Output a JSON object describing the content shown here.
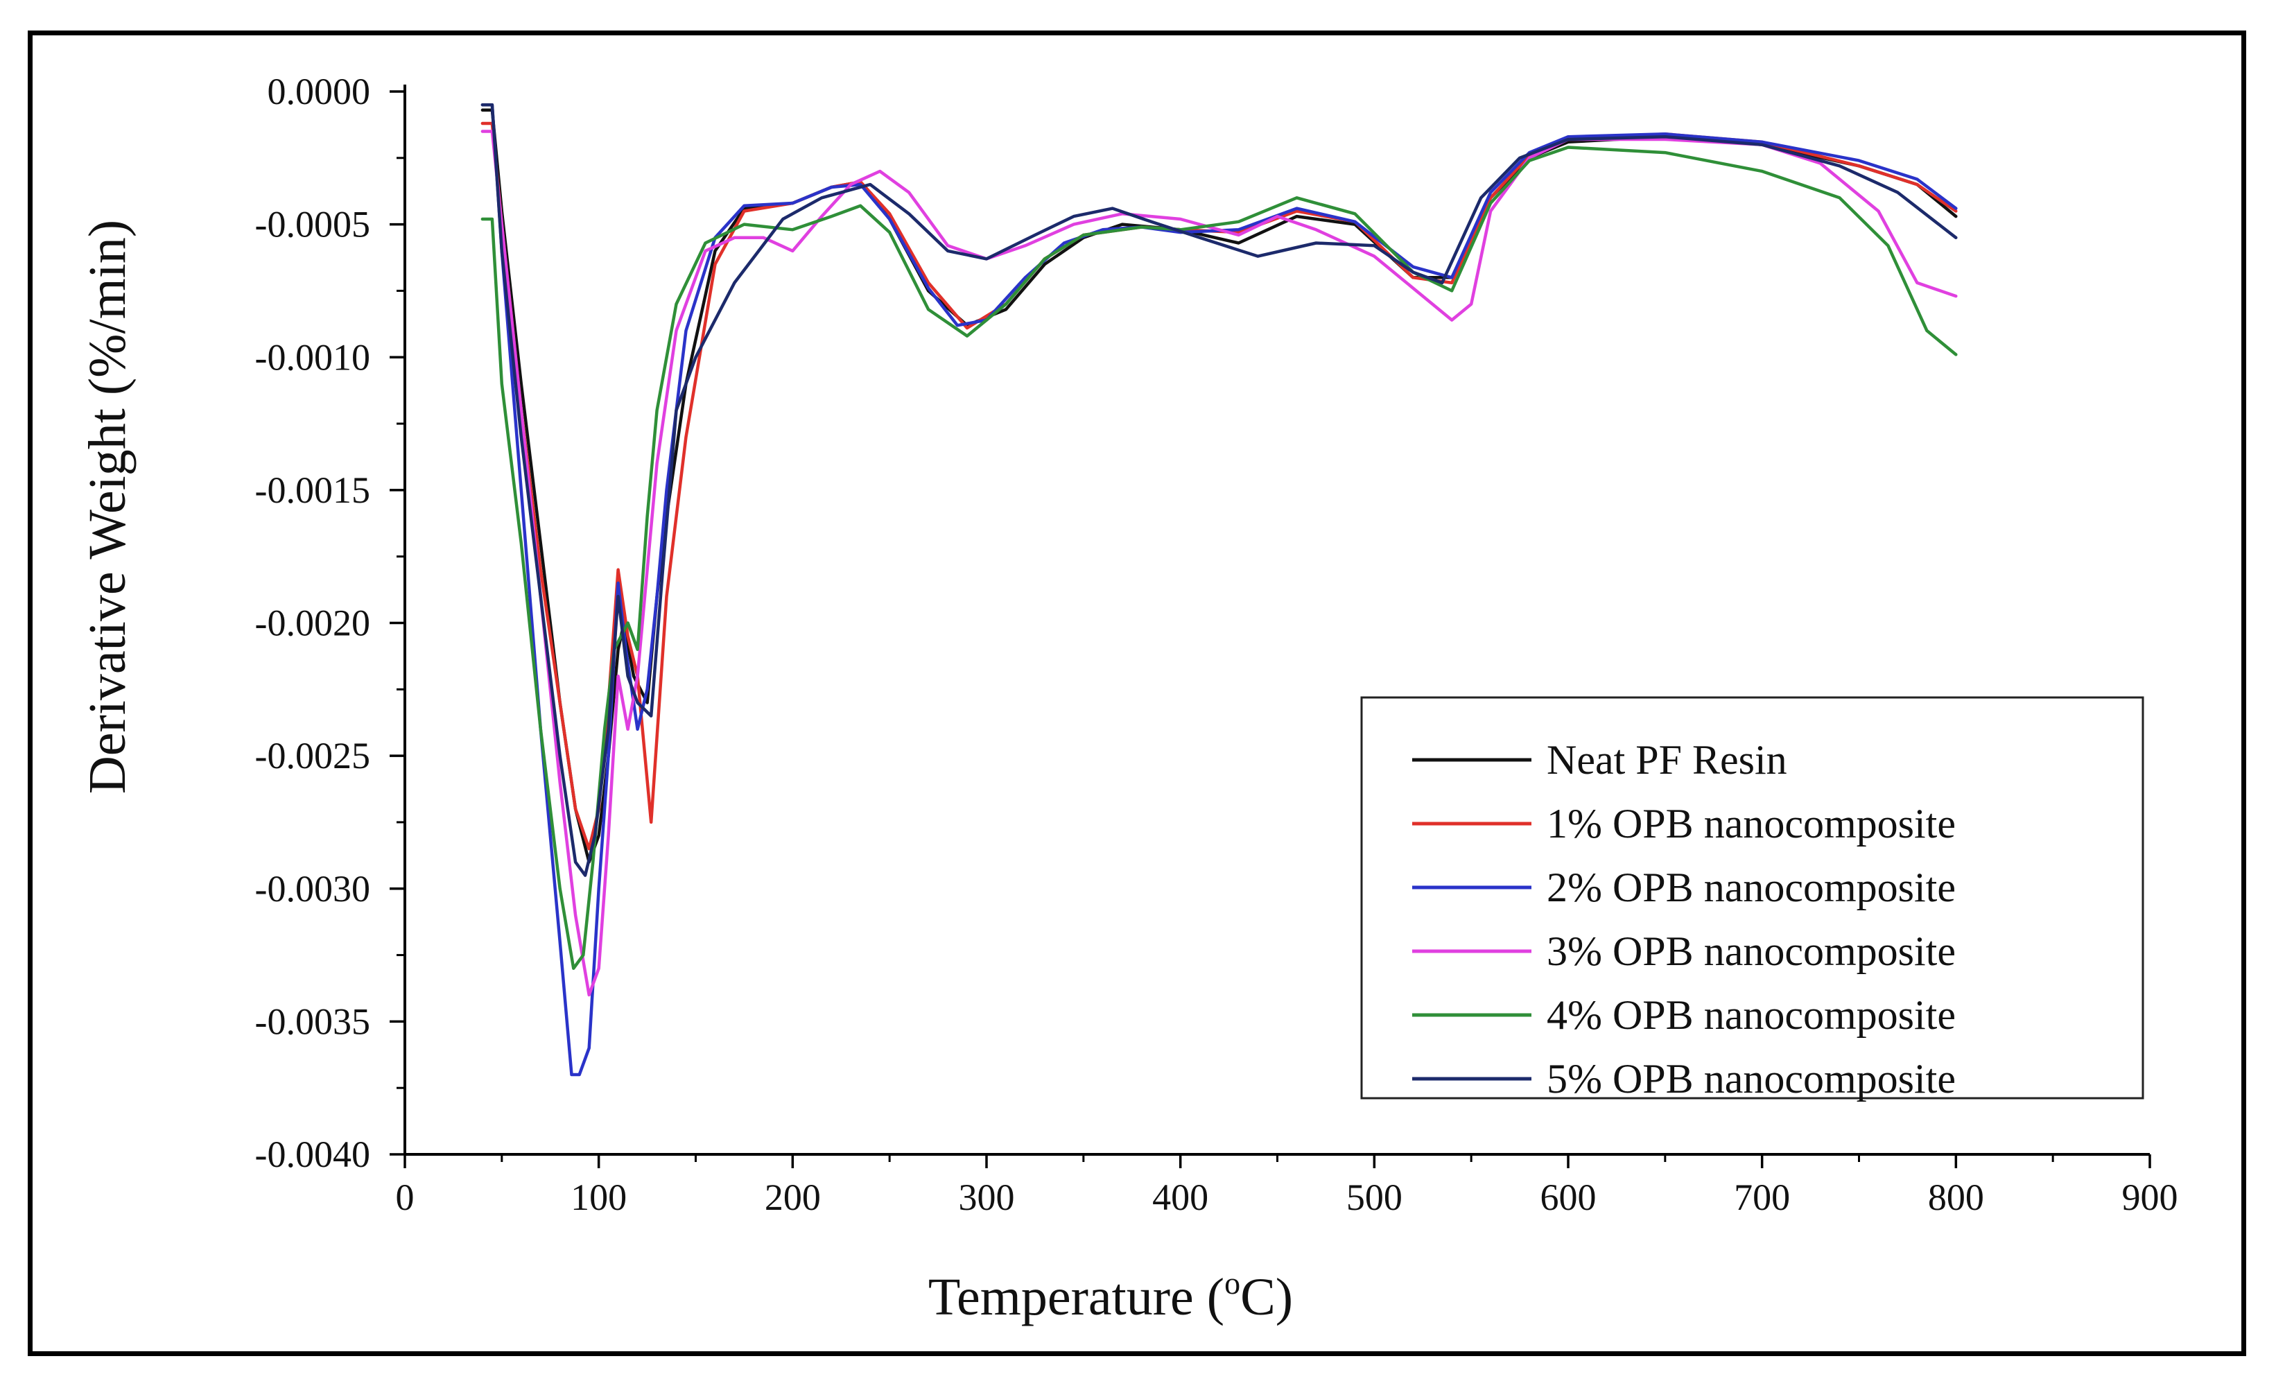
{
  "chart_data": {
    "type": "line",
    "title": "",
    "xlabel": "Temperature (°C)",
    "xlabel_main": "Temperature (",
    "xlabel_unit_sup": "o",
    "xlabel_unit_rest": "C)",
    "ylabel": "Derivative Weight (%/min)",
    "xlim": [
      0,
      900
    ],
    "ylim": [
      -0.004,
      0.0
    ],
    "x_ticks": [
      0,
      100,
      200,
      300,
      400,
      500,
      600,
      700,
      800,
      900
    ],
    "x_tick_labels": [
      "0",
      "100",
      "200",
      "300",
      "400",
      "500",
      "600",
      "700",
      "800",
      "900"
    ],
    "y_ticks": [
      0.0,
      -0.0005,
      -0.001,
      -0.0015,
      -0.002,
      -0.0025,
      -0.003,
      -0.0035,
      -0.004
    ],
    "y_tick_labels": [
      "0.0000",
      "-0.0005",
      "-0.0010",
      "-0.0015",
      "-0.0020",
      "-0.0025",
      "-0.0030",
      "-0.0035",
      "-0.0040"
    ],
    "grid": false,
    "legend_position": "bottom-right",
    "series": [
      {
        "name": "Neat PF Resin",
        "color": "#111111",
        "points": [
          [
            40,
            -7e-05
          ],
          [
            45,
            -7e-05
          ],
          [
            50,
            -0.00045
          ],
          [
            60,
            -0.0011
          ],
          [
            70,
            -0.0017
          ],
          [
            80,
            -0.0023
          ],
          [
            88,
            -0.0027
          ],
          [
            95,
            -0.0029
          ],
          [
            100,
            -0.0028
          ],
          [
            105,
            -0.0025
          ],
          [
            110,
            -0.0021
          ],
          [
            113,
            -0.002
          ],
          [
            118,
            -0.0022
          ],
          [
            125,
            -0.0023
          ],
          [
            130,
            -0.0019
          ],
          [
            135,
            -0.0016
          ],
          [
            145,
            -0.0011
          ],
          [
            160,
            -0.0006
          ],
          [
            175,
            -0.00044
          ],
          [
            200,
            -0.00042
          ],
          [
            220,
            -0.00036
          ],
          [
            235,
            -0.00034
          ],
          [
            250,
            -0.00048
          ],
          [
            270,
            -0.00075
          ],
          [
            290,
            -0.00088
          ],
          [
            310,
            -0.00082
          ],
          [
            330,
            -0.00065
          ],
          [
            350,
            -0.00055
          ],
          [
            370,
            -0.0005
          ],
          [
            400,
            -0.00052
          ],
          [
            430,
            -0.00057
          ],
          [
            460,
            -0.00047
          ],
          [
            490,
            -0.0005
          ],
          [
            520,
            -0.0007
          ],
          [
            540,
            -0.0007
          ],
          [
            560,
            -0.0004
          ],
          [
            580,
            -0.00025
          ],
          [
            600,
            -0.00019
          ],
          [
            650,
            -0.00017
          ],
          [
            700,
            -0.0002
          ],
          [
            750,
            -0.00028
          ],
          [
            780,
            -0.00035
          ],
          [
            800,
            -0.00047
          ]
        ]
      },
      {
        "name": "1% OPB nanocomposite",
        "color": "#e0302a",
        "points": [
          [
            40,
            -0.00012
          ],
          [
            45,
            -0.00012
          ],
          [
            50,
            -0.0005
          ],
          [
            60,
            -0.0012
          ],
          [
            70,
            -0.0018
          ],
          [
            80,
            -0.0023
          ],
          [
            88,
            -0.0027
          ],
          [
            95,
            -0.00285
          ],
          [
            100,
            -0.0027
          ],
          [
            105,
            -0.0023
          ],
          [
            110,
            -0.0018
          ],
          [
            115,
            -0.00205
          ],
          [
            120,
            -0.0022
          ],
          [
            127,
            -0.00275
          ],
          [
            135,
            -0.0019
          ],
          [
            145,
            -0.0013
          ],
          [
            160,
            -0.00065
          ],
          [
            175,
            -0.00045
          ],
          [
            200,
            -0.00042
          ],
          [
            220,
            -0.00036
          ],
          [
            235,
            -0.00034
          ],
          [
            250,
            -0.00046
          ],
          [
            270,
            -0.00072
          ],
          [
            290,
            -0.00089
          ],
          [
            310,
            -0.0008
          ],
          [
            330,
            -0.00063
          ],
          [
            350,
            -0.00054
          ],
          [
            380,
            -0.00051
          ],
          [
            400,
            -0.00052
          ],
          [
            430,
            -0.00053
          ],
          [
            460,
            -0.00045
          ],
          [
            490,
            -0.00049
          ],
          [
            520,
            -0.0007
          ],
          [
            540,
            -0.00072
          ],
          [
            560,
            -0.0004
          ],
          [
            580,
            -0.00024
          ],
          [
            600,
            -0.00018
          ],
          [
            650,
            -0.00016
          ],
          [
            700,
            -0.00019
          ],
          [
            750,
            -0.00028
          ],
          [
            780,
            -0.00035
          ],
          [
            800,
            -0.00045
          ]
        ]
      },
      {
        "name": "2% OPB nanocomposite",
        "color": "#2a33c9",
        "points": [
          [
            40,
            -5e-05
          ],
          [
            45,
            -5e-05
          ],
          [
            50,
            -0.0006
          ],
          [
            60,
            -0.0015
          ],
          [
            70,
            -0.0024
          ],
          [
            80,
            -0.0032
          ],
          [
            86,
            -0.0037
          ],
          [
            90,
            -0.0037
          ],
          [
            95,
            -0.0036
          ],
          [
            100,
            -0.003
          ],
          [
            105,
            -0.0025
          ],
          [
            110,
            -0.00185
          ],
          [
            114,
            -0.0021
          ],
          [
            120,
            -0.0024
          ],
          [
            125,
            -0.00225
          ],
          [
            130,
            -0.0019
          ],
          [
            135,
            -0.0015
          ],
          [
            145,
            -0.0009
          ],
          [
            160,
            -0.00055
          ],
          [
            175,
            -0.00043
          ],
          [
            200,
            -0.00042
          ],
          [
            220,
            -0.00036
          ],
          [
            235,
            -0.00035
          ],
          [
            250,
            -0.00048
          ],
          [
            270,
            -0.00074
          ],
          [
            285,
            -0.00088
          ],
          [
            300,
            -0.00086
          ],
          [
            320,
            -0.0007
          ],
          [
            340,
            -0.00057
          ],
          [
            360,
            -0.00052
          ],
          [
            380,
            -0.00051
          ],
          [
            400,
            -0.00053
          ],
          [
            430,
            -0.00052
          ],
          [
            460,
            -0.00044
          ],
          [
            490,
            -0.00049
          ],
          [
            520,
            -0.00066
          ],
          [
            540,
            -0.0007
          ],
          [
            560,
            -0.00038
          ],
          [
            580,
            -0.00023
          ],
          [
            600,
            -0.00017
          ],
          [
            650,
            -0.00016
          ],
          [
            700,
            -0.00019
          ],
          [
            750,
            -0.00026
          ],
          [
            780,
            -0.00033
          ],
          [
            800,
            -0.00044
          ]
        ]
      },
      {
        "name": "3% OPB nanocomposite",
        "color": "#e040e0",
        "points": [
          [
            40,
            -0.00015
          ],
          [
            45,
            -0.00015
          ],
          [
            50,
            -0.0005
          ],
          [
            60,
            -0.0012
          ],
          [
            70,
            -0.0019
          ],
          [
            80,
            -0.0026
          ],
          [
            88,
            -0.0031
          ],
          [
            95,
            -0.0034
          ],
          [
            100,
            -0.0033
          ],
          [
            105,
            -0.0028
          ],
          [
            110,
            -0.0022
          ],
          [
            115,
            -0.0024
          ],
          [
            120,
            -0.0022
          ],
          [
            125,
            -0.0018
          ],
          [
            130,
            -0.0014
          ],
          [
            140,
            -0.0009
          ],
          [
            155,
            -0.0006
          ],
          [
            170,
            -0.00055
          ],
          [
            185,
            -0.00055
          ],
          [
            200,
            -0.0006
          ],
          [
            215,
            -0.00047
          ],
          [
            230,
            -0.00035
          ],
          [
            245,
            -0.0003
          ],
          [
            260,
            -0.00038
          ],
          [
            280,
            -0.00058
          ],
          [
            300,
            -0.00063
          ],
          [
            320,
            -0.00058
          ],
          [
            345,
            -0.0005
          ],
          [
            370,
            -0.00046
          ],
          [
            400,
            -0.00048
          ],
          [
            430,
            -0.00054
          ],
          [
            450,
            -0.00047
          ],
          [
            470,
            -0.00052
          ],
          [
            500,
            -0.00062
          ],
          [
            520,
            -0.00074
          ],
          [
            540,
            -0.00086
          ],
          [
            550,
            -0.0008
          ],
          [
            560,
            -0.00045
          ],
          [
            580,
            -0.00025
          ],
          [
            600,
            -0.00018
          ],
          [
            650,
            -0.00018
          ],
          [
            700,
            -0.0002
          ],
          [
            730,
            -0.00027
          ],
          [
            760,
            -0.00045
          ],
          [
            780,
            -0.00072
          ],
          [
            800,
            -0.00077
          ]
        ]
      },
      {
        "name": "4% OPB nanocomposite",
        "color": "#2f8f38",
        "points": [
          [
            40,
            -0.00048
          ],
          [
            45,
            -0.00048
          ],
          [
            50,
            -0.0011
          ],
          [
            60,
            -0.0017
          ],
          [
            70,
            -0.0024
          ],
          [
            80,
            -0.003
          ],
          [
            87,
            -0.0033
          ],
          [
            92,
            -0.00325
          ],
          [
            97,
            -0.0029
          ],
          [
            103,
            -0.0024
          ],
          [
            108,
            -0.0021
          ],
          [
            115,
            -0.002
          ],
          [
            120,
            -0.0021
          ],
          [
            125,
            -0.0016
          ],
          [
            130,
            -0.0012
          ],
          [
            140,
            -0.0008
          ],
          [
            155,
            -0.00057
          ],
          [
            175,
            -0.0005
          ],
          [
            200,
            -0.00052
          ],
          [
            220,
            -0.00047
          ],
          [
            235,
            -0.00043
          ],
          [
            250,
            -0.00053
          ],
          [
            270,
            -0.00082
          ],
          [
            290,
            -0.00092
          ],
          [
            310,
            -0.0008
          ],
          [
            330,
            -0.00063
          ],
          [
            350,
            -0.00054
          ],
          [
            380,
            -0.00051
          ],
          [
            400,
            -0.00052
          ],
          [
            430,
            -0.00049
          ],
          [
            460,
            -0.0004
          ],
          [
            490,
            -0.00046
          ],
          [
            520,
            -0.00068
          ],
          [
            540,
            -0.00075
          ],
          [
            560,
            -0.00042
          ],
          [
            580,
            -0.00026
          ],
          [
            600,
            -0.00021
          ],
          [
            650,
            -0.00023
          ],
          [
            700,
            -0.0003
          ],
          [
            740,
            -0.0004
          ],
          [
            765,
            -0.00058
          ],
          [
            785,
            -0.0009
          ],
          [
            800,
            -0.00099
          ]
        ]
      },
      {
        "name": "5% OPB nanocomposite",
        "color": "#1c2a6b",
        "points": [
          [
            40,
            -5e-05
          ],
          [
            45,
            -5e-05
          ],
          [
            50,
            -0.0006
          ],
          [
            60,
            -0.0013
          ],
          [
            70,
            -0.0019
          ],
          [
            80,
            -0.0025
          ],
          [
            88,
            -0.0029
          ],
          [
            93,
            -0.00295
          ],
          [
            98,
            -0.0028
          ],
          [
            105,
            -0.0024
          ],
          [
            110,
            -0.0019
          ],
          [
            115,
            -0.0022
          ],
          [
            120,
            -0.0023
          ],
          [
            127,
            -0.00235
          ],
          [
            133,
            -0.0018
          ],
          [
            140,
            -0.0012
          ],
          [
            150,
            -0.001
          ],
          [
            170,
            -0.00072
          ],
          [
            195,
            -0.00048
          ],
          [
            215,
            -0.0004
          ],
          [
            240,
            -0.00035
          ],
          [
            260,
            -0.00046
          ],
          [
            280,
            -0.0006
          ],
          [
            300,
            -0.00063
          ],
          [
            325,
            -0.00054
          ],
          [
            345,
            -0.00047
          ],
          [
            365,
            -0.00044
          ],
          [
            385,
            -0.00049
          ],
          [
            410,
            -0.00055
          ],
          [
            440,
            -0.00062
          ],
          [
            470,
            -0.00057
          ],
          [
            500,
            -0.00058
          ],
          [
            520,
            -0.00068
          ],
          [
            535,
            -0.00072
          ],
          [
            555,
            -0.0004
          ],
          [
            575,
            -0.00025
          ],
          [
            600,
            -0.00018
          ],
          [
            650,
            -0.00017
          ],
          [
            700,
            -0.0002
          ],
          [
            740,
            -0.00028
          ],
          [
            770,
            -0.00038
          ],
          [
            800,
            -0.00055
          ]
        ]
      }
    ]
  }
}
